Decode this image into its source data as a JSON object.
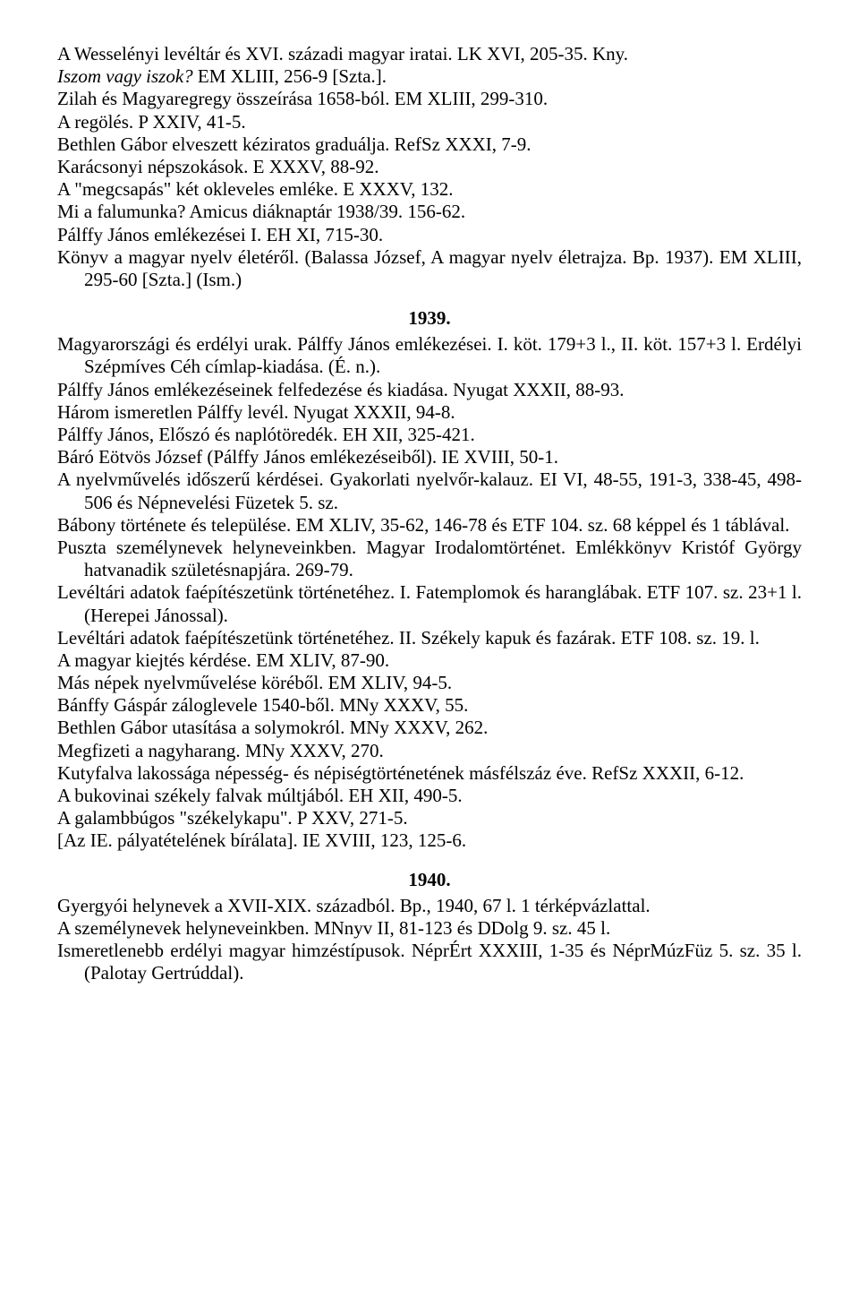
{
  "blocks": [
    {
      "type": "entry",
      "text": "A Wesselényi levéltár és XVI. századi magyar iratai. LK XVI, 205-35. Kny."
    },
    {
      "type": "entry",
      "italicPrefix": "Iszom vagy iszok?",
      "rest": " EM XLIII, 256-9 [Szta.]."
    },
    {
      "type": "entry",
      "text": "Zilah és Magyaregregy összeírása 1658-ból. EM XLIII, 299-310."
    },
    {
      "type": "entry",
      "text": "A regölés. P XXIV, 41-5."
    },
    {
      "type": "entry",
      "text": "Bethlen Gábor elveszett kéziratos graduálja. RefSz XXXI, 7-9."
    },
    {
      "type": "entry",
      "text": "Karácsonyi népszokások. E XXXV, 88-92."
    },
    {
      "type": "entry",
      "text": "A \"megcsapás\" két okleveles emléke. E XXXV, 132."
    },
    {
      "type": "entry",
      "text": "Mi a  falumunka? Amicus diáknaptár 1938/39. 156-62."
    },
    {
      "type": "entry",
      "text": "Pálffy János emlékezései I. EH XI, 715-30."
    },
    {
      "type": "entry",
      "text": "Könyv a magyar nyelv életéről. (Balassa József, A magyar nyelv életrajza. Bp. 1937). EM XLIII, 295-60 [Szta.] (Ism.)"
    },
    {
      "type": "heading",
      "text": "1939."
    },
    {
      "type": "entry",
      "text": "Magyarországi és erdélyi urak. Pálffy János emlékezései. I. köt. 179+3 l., II. köt. 157+3 l. Erdélyi Szépmíves Céh címlap-kiadása. (É. n.)."
    },
    {
      "type": "entry",
      "text": "Pálffy János emlékezéseinek felfedezése és kiadása. Nyugat XXXII, 88-93."
    },
    {
      "type": "entry",
      "text": "Három ismeretlen Pálffy levél. Nyugat XXXII, 94-8."
    },
    {
      "type": "entry",
      "text": "Pálffy János, Előszó és naplótöredék. EH XII, 325-421."
    },
    {
      "type": "entry",
      "text": "Báró Eötvös József (Pálffy János emlékezéseiből). IE XVIII, 50-1."
    },
    {
      "type": "entry",
      "text": "A nyelvművelés időszerű kérdései. Gyakorlati nyelvőr-kalauz. EI VI, 48-55, 191-3, 338-45, 498-506 és Népnevelési Füzetek 5. sz."
    },
    {
      "type": "entry",
      "text": "Bábony története és települése. EM XLIV, 35-62, 146-78 és ETF 104. sz. 68 képpel és 1 táblával."
    },
    {
      "type": "entry",
      "text": "Puszta személynevek helyneveinkben. Magyar Irodalomtörténet. Emlékkönyv Kristóf György hatvanadik születésnapjára. 269-79."
    },
    {
      "type": "entry",
      "text": "Levéltári adatok faépítészetünk történetéhez. I. Fatemplomok és haranglábak. ETF 107. sz. 23+1 l. (Herepei Jánossal)."
    },
    {
      "type": "entry",
      "text": "Levéltári adatok faépítészetünk történetéhez. II. Székely kapuk és fazárak. ETF 108. sz. 19. l."
    },
    {
      "type": "entry",
      "text": "A magyar kiejtés kérdése. EM XLIV, 87-90."
    },
    {
      "type": "entry",
      "text": "Más népek nyelvművelése köréből. EM XLIV, 94-5."
    },
    {
      "type": "entry",
      "text": "Bánffy Gáspár záloglevele 1540-ből. MNy XXXV, 55."
    },
    {
      "type": "entry",
      "text": "Bethlen Gábor utasítása a solymokról. MNy XXXV, 262."
    },
    {
      "type": "entry",
      "text": "Megfizeti a nagyharang. MNy XXXV, 270."
    },
    {
      "type": "entry",
      "text": "Kutyfalva lakossága népesség- és népiségtörténetének másfélszáz éve. RefSz XXXII, 6-12."
    },
    {
      "type": "entry",
      "text": "A bukovinai székely falvak múltjából. EH XII, 490-5."
    },
    {
      "type": "entry",
      "text": "A galambbúgos \"székelykapu\". P XXV, 271-5."
    },
    {
      "type": "entry",
      "text": "[Az IE. pályatételének bírálata]. IE XVIII, 123, 125-6."
    },
    {
      "type": "heading",
      "text": "1940."
    },
    {
      "type": "entry",
      "text": "Gyergyói helynevek a XVII-XIX. századból. Bp., 1940, 67 l. 1 térképvázlattal."
    },
    {
      "type": "entry",
      "text": "A személynevek helyneveinkben. MNnyv II, 81-123 és DDolg 9. sz. 45 l."
    },
    {
      "type": "entry",
      "text": "Ismeretlenebb erdélyi magyar himzéstípusok. NéprÉrt XXXIII, 1-35 és NéprMúzFüz 5. sz. 35 l. (Palotay Gertrúddal)."
    }
  ]
}
